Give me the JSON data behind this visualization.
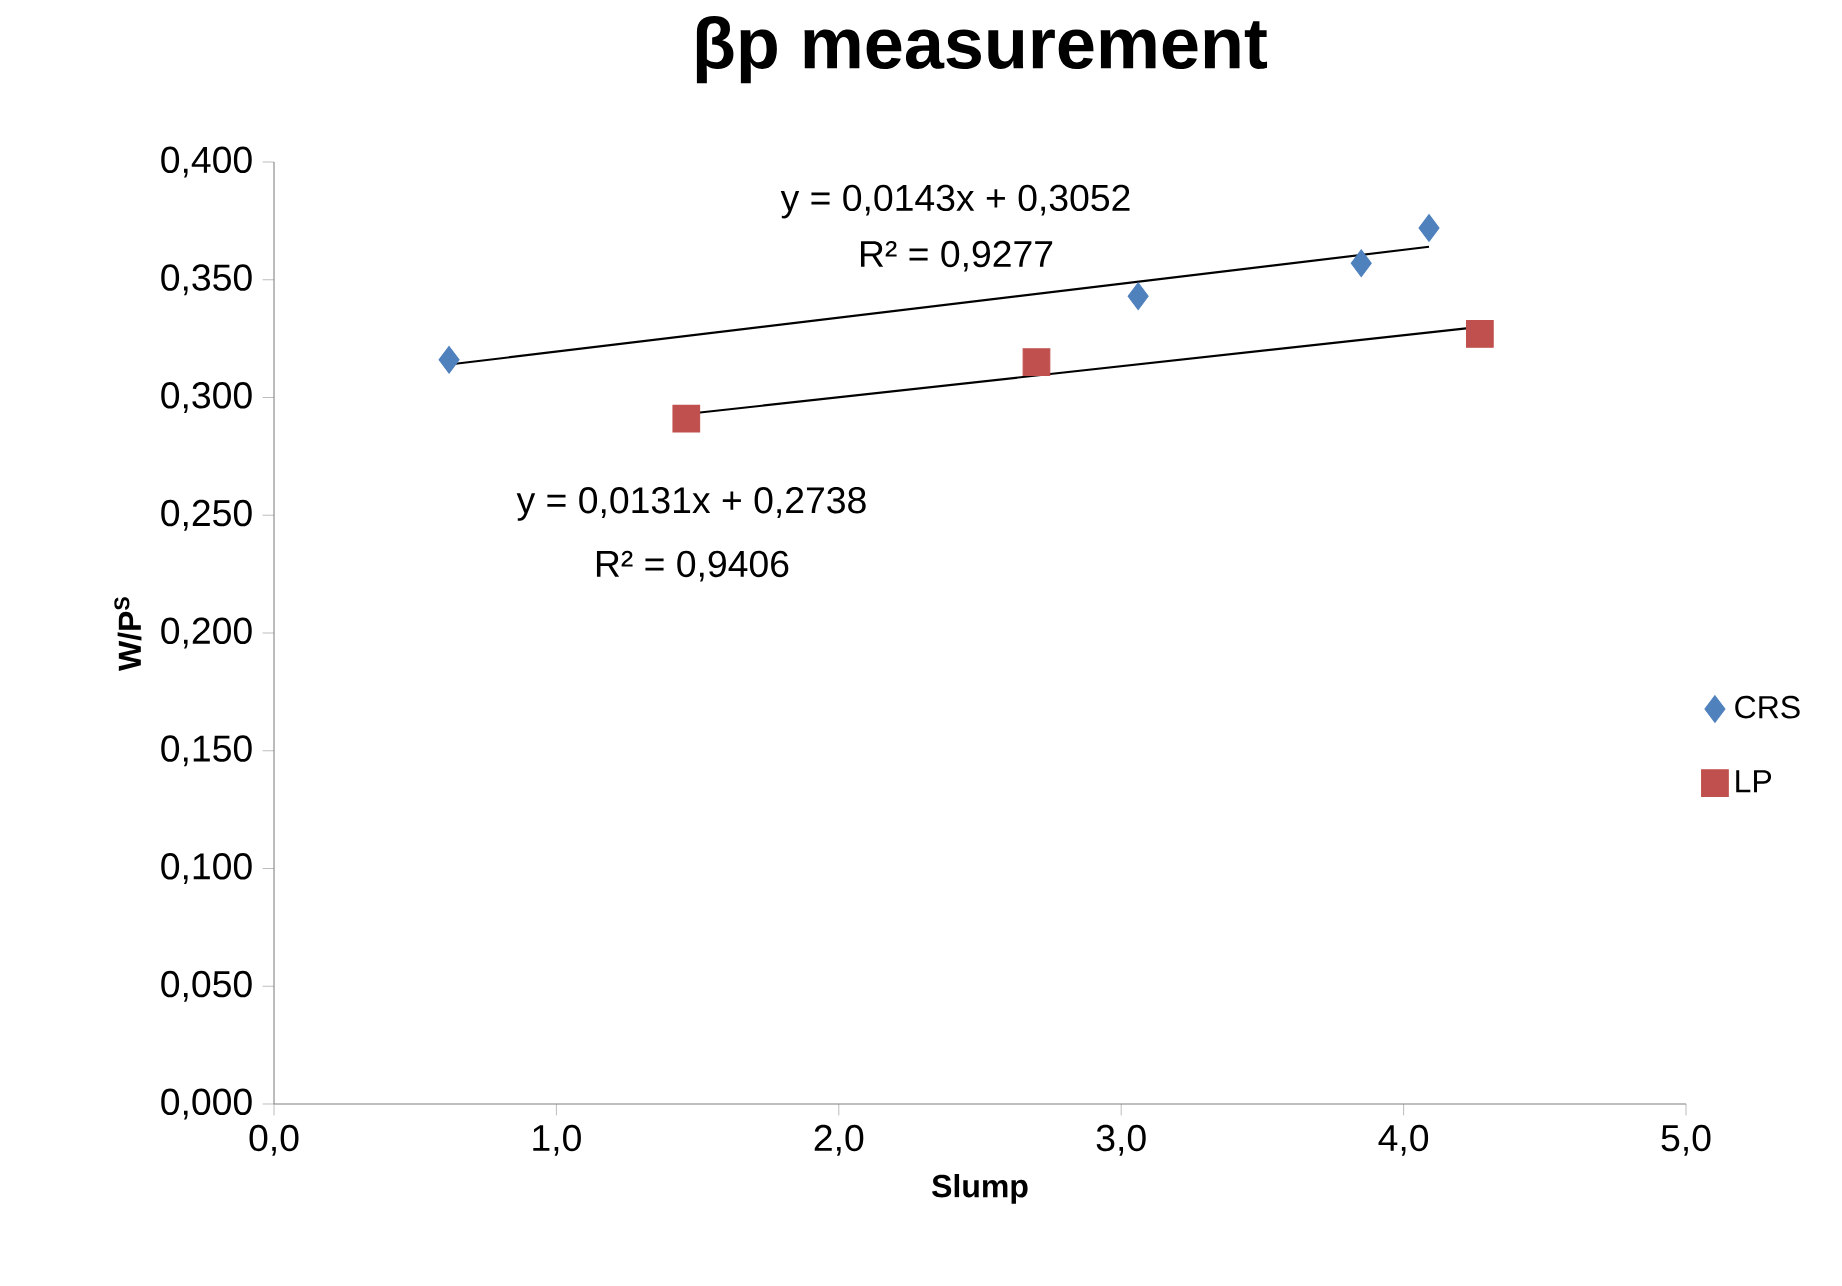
{
  "chart_data": {
    "type": "scatter",
    "title": "βp measurement",
    "xlabel": "Slump",
    "ylabel": "W/P$^{S}$",
    "xlim": [
      0,
      5
    ],
    "ylim": [
      0,
      0.4
    ],
    "xticks": [
      {
        "value": 0,
        "label": "0,0"
      },
      {
        "value": 1,
        "label": "1,0"
      },
      {
        "value": 2,
        "label": "2,0"
      },
      {
        "value": 3,
        "label": "3,0"
      },
      {
        "value": 4,
        "label": "4,0"
      },
      {
        "value": 5,
        "label": "5,0"
      }
    ],
    "yticks": [
      {
        "value": 0,
        "label": "0,000"
      },
      {
        "value": 0.05,
        "label": "0,050"
      },
      {
        "value": 0.1,
        "label": "0,100"
      },
      {
        "value": 0.15,
        "label": "0,150"
      },
      {
        "value": 0.2,
        "label": "0,200"
      },
      {
        "value": 0.25,
        "label": "0,250"
      },
      {
        "value": 0.3,
        "label": "0,300"
      },
      {
        "value": 0.35,
        "label": "0,350"
      },
      {
        "value": 0.4,
        "label": "0,400"
      }
    ],
    "legend": "right",
    "grid": false,
    "series": [
      {
        "name": "CRS",
        "marker": "diamond",
        "color": "#4f81bd",
        "x": [
          0.62,
          3.06,
          3.85,
          4.09
        ],
        "values": [
          0.316,
          0.343,
          0.357,
          0.372
        ]
      },
      {
        "name": "LP",
        "marker": "square",
        "color": "#c0504d",
        "x": [
          1.46,
          2.7,
          4.27
        ],
        "values": [
          0.291,
          0.315,
          0.327
        ]
      },
      {
        "type": "line",
        "marker": "none",
        "color": "#000000",
        "x": [
          0.62,
          4.09
        ],
        "values": [
          0.314,
          0.364
        ]
      },
      {
        "type": "line",
        "marker": "none",
        "color": "#000000",
        "x": [
          1.46,
          4.27
        ],
        "values": [
          0.293,
          0.33
        ]
      }
    ],
    "annotations": [
      "y = 0,0143x + 0,3052",
      "R² = 0,9277",
      "y = 0,0131x + 0,2738",
      "R² = 0,9406"
    ]
  }
}
